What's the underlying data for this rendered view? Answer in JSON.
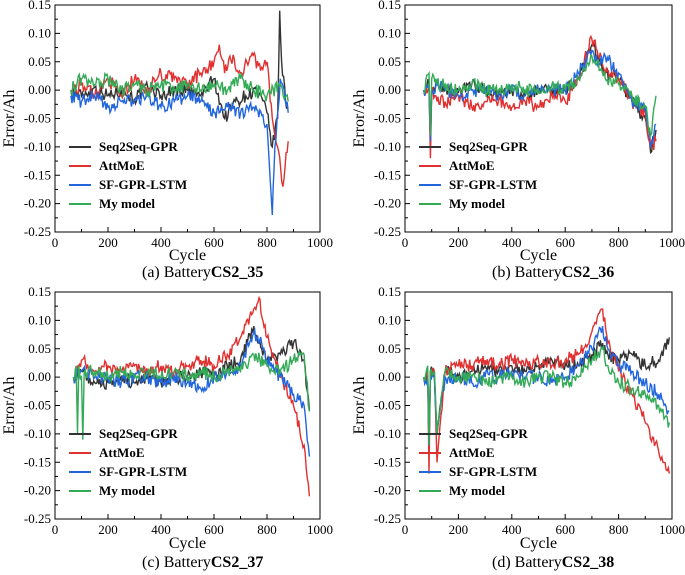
{
  "chart_data": [
    {
      "type": "line",
      "panel": "a",
      "caption_prefix": "(a)  Battery",
      "caption_bold": "CS2_35",
      "xlabel": "Cycle",
      "ylabel": "Error/Ah",
      "xlim": [
        0,
        1000
      ],
      "ylim": [
        -0.25,
        0.15
      ],
      "xticks": [
        "0",
        "200",
        "400",
        "600",
        "800",
        "1000"
      ],
      "yticks": [
        "-0.25",
        "-0.20",
        "-0.15",
        "-0.10",
        "-0.05",
        "0.00",
        "0.05",
        "0.10",
        "0.15"
      ],
      "legend_position": "lower-left",
      "series": [
        {
          "name": "Seq2Seq-GPR",
          "color": "#333333",
          "x": [
            60,
            100,
            150,
            200,
            250,
            300,
            350,
            400,
            450,
            500,
            550,
            600,
            640,
            680,
            720,
            760,
            800,
            820,
            840,
            848,
            855,
            870,
            880
          ],
          "y": [
            0.0,
            -0.01,
            0.005,
            -0.01,
            0.0,
            -0.015,
            0.005,
            -0.01,
            0.0,
            0.0,
            -0.01,
            0.02,
            -0.05,
            -0.02,
            -0.01,
            0.0,
            -0.04,
            -0.1,
            -0.05,
            0.14,
            0.05,
            -0.02,
            -0.03
          ]
        },
        {
          "name": "AttMoE",
          "color": "#e03030",
          "x": [
            60,
            100,
            150,
            200,
            250,
            300,
            350,
            400,
            450,
            500,
            550,
            600,
            620,
            640,
            660,
            700,
            740,
            780,
            800,
            820,
            840,
            860,
            880
          ],
          "y": [
            0.0,
            0.01,
            -0.01,
            0.02,
            -0.01,
            0.02,
            0.0,
            0.03,
            0.02,
            0.01,
            0.03,
            0.05,
            0.08,
            0.03,
            0.06,
            0.03,
            0.06,
            0.04,
            0.05,
            -0.05,
            -0.1,
            -0.17,
            -0.09
          ]
        },
        {
          "name": "SF-GPR-LSTM",
          "color": "#2266dd",
          "x": [
            60,
            100,
            150,
            200,
            250,
            300,
            350,
            400,
            450,
            500,
            550,
            600,
            650,
            700,
            750,
            800,
            820,
            830,
            850,
            880
          ],
          "y": [
            -0.01,
            -0.02,
            -0.01,
            -0.03,
            -0.02,
            -0.02,
            -0.01,
            -0.03,
            -0.02,
            -0.01,
            -0.02,
            -0.04,
            -0.03,
            -0.04,
            -0.03,
            -0.06,
            -0.22,
            -0.1,
            0.02,
            -0.04
          ]
        },
        {
          "name": "My model",
          "color": "#33aa55",
          "x": [
            60,
            100,
            150,
            200,
            250,
            300,
            350,
            400,
            450,
            500,
            550,
            600,
            650,
            700,
            750,
            800,
            850,
            880
          ],
          "y": [
            0.0,
            0.02,
            0.01,
            0.02,
            0.0,
            0.01,
            0.0,
            0.01,
            0.0,
            0.01,
            0.0,
            0.01,
            0.0,
            0.02,
            0.0,
            -0.01,
            0.01,
            -0.02
          ]
        }
      ]
    },
    {
      "type": "line",
      "panel": "b",
      "caption_prefix": "(b)  Battery",
      "caption_bold": "CS2_36",
      "xlabel": "Cycle",
      "ylabel": "Error/Ah",
      "xlim": [
        0,
        1000
      ],
      "ylim": [
        -0.25,
        0.15
      ],
      "xticks": [
        "0",
        "200",
        "400",
        "600",
        "800",
        "1000"
      ],
      "yticks": [
        "-0.25",
        "-0.20",
        "-0.15",
        "-0.10",
        "-0.05",
        "0.00",
        "0.05",
        "0.10",
        "0.15"
      ],
      "legend_position": "lower-left",
      "series": [
        {
          "name": "Seq2Seq-GPR",
          "color": "#333333",
          "x": [
            70,
            90,
            95,
            100,
            120,
            150,
            200,
            250,
            300,
            350,
            400,
            450,
            500,
            550,
            600,
            650,
            700,
            720,
            750,
            800,
            850,
            900,
            920,
            940
          ],
          "y": [
            0.0,
            0.01,
            -0.1,
            0.0,
            0.01,
            0.0,
            -0.005,
            0.01,
            0.0,
            -0.01,
            0.0,
            -0.01,
            0.0,
            0.0,
            0.0,
            0.02,
            0.08,
            0.06,
            0.03,
            0.02,
            -0.02,
            -0.05,
            -0.11,
            -0.07
          ]
        },
        {
          "name": "AttMoE",
          "color": "#e03030",
          "x": [
            70,
            90,
            95,
            100,
            120,
            150,
            200,
            250,
            300,
            350,
            400,
            450,
            500,
            550,
            600,
            650,
            700,
            720,
            750,
            800,
            850,
            900,
            920,
            940
          ],
          "y": [
            0.0,
            0.01,
            -0.12,
            0.0,
            -0.02,
            -0.02,
            -0.01,
            -0.03,
            -0.02,
            -0.02,
            -0.03,
            -0.02,
            -0.03,
            -0.01,
            -0.02,
            0.02,
            0.09,
            0.07,
            0.03,
            0.02,
            -0.02,
            -0.04,
            -0.1,
            -0.09
          ]
        },
        {
          "name": "SF-GPR-LSTM",
          "color": "#2266dd",
          "x": [
            70,
            90,
            95,
            100,
            120,
            150,
            200,
            250,
            300,
            350,
            400,
            450,
            500,
            550,
            600,
            650,
            700,
            720,
            750,
            800,
            850,
            900,
            920,
            940
          ],
          "y": [
            0.0,
            0.01,
            -0.09,
            0.0,
            0.01,
            0.0,
            -0.01,
            0.0,
            0.0,
            -0.01,
            0.0,
            -0.01,
            0.0,
            0.0,
            0.0,
            0.03,
            0.07,
            0.05,
            0.06,
            0.03,
            -0.02,
            -0.03,
            -0.1,
            -0.06
          ]
        },
        {
          "name": "My model",
          "color": "#33aa55",
          "x": [
            70,
            90,
            95,
            100,
            120,
            150,
            200,
            250,
            300,
            350,
            400,
            450,
            500,
            550,
            600,
            650,
            700,
            720,
            750,
            800,
            850,
            900,
            920,
            940
          ],
          "y": [
            0.0,
            0.03,
            -0.08,
            0.02,
            0.01,
            0.01,
            0.0,
            0.01,
            0.0,
            0.0,
            0.01,
            0.0,
            0.0,
            0.01,
            0.0,
            0.02,
            0.06,
            0.05,
            0.02,
            0.01,
            -0.01,
            -0.03,
            -0.08,
            -0.01
          ]
        }
      ]
    },
    {
      "type": "line",
      "panel": "c",
      "caption_prefix": "(c)  Battery",
      "caption_bold": "CS2_37",
      "xlabel": "Cycle",
      "ylabel": "Error/Ah",
      "xlim": [
        0,
        1000
      ],
      "ylim": [
        -0.25,
        0.15
      ],
      "xticks": [
        "0",
        "200",
        "400",
        "600",
        "800",
        "1000"
      ],
      "yticks": [
        "-0.25",
        "-0.20",
        "-0.15",
        "-0.10",
        "-0.05",
        "0.00",
        "0.05",
        "0.10",
        "0.15"
      ],
      "legend_position": "lower-left",
      "series": [
        {
          "name": "Seq2Seq-GPR",
          "color": "#333333",
          "x": [
            70,
            100,
            150,
            200,
            250,
            300,
            350,
            400,
            450,
            500,
            550,
            600,
            650,
            700,
            750,
            780,
            800,
            850,
            900,
            940,
            960
          ],
          "y": [
            0.0,
            0.01,
            -0.01,
            -0.01,
            0.0,
            -0.01,
            0.0,
            -0.01,
            0.0,
            0.0,
            0.01,
            0.0,
            0.02,
            0.03,
            0.09,
            0.05,
            0.03,
            0.04,
            0.06,
            0.03,
            -0.06
          ]
        },
        {
          "name": "AttMoE",
          "color": "#e03030",
          "x": [
            70,
            100,
            150,
            200,
            250,
            300,
            350,
            400,
            450,
            500,
            550,
            600,
            650,
            700,
            750,
            770,
            800,
            850,
            900,
            940,
            960
          ],
          "y": [
            0.0,
            0.03,
            0.01,
            0.02,
            0.01,
            0.02,
            0.01,
            0.02,
            0.01,
            0.02,
            0.03,
            0.02,
            0.04,
            0.07,
            0.12,
            0.14,
            0.07,
            0.0,
            -0.05,
            -0.12,
            -0.21
          ]
        },
        {
          "name": "SF-GPR-LSTM",
          "color": "#2266dd",
          "x": [
            70,
            100,
            150,
            200,
            250,
            300,
            350,
            400,
            450,
            500,
            550,
            600,
            650,
            700,
            750,
            780,
            800,
            850,
            900,
            940,
            960
          ],
          "y": [
            0.0,
            0.01,
            0.0,
            0.0,
            -0.01,
            0.0,
            0.0,
            -0.01,
            0.0,
            -0.01,
            -0.02,
            0.0,
            0.01,
            0.02,
            0.08,
            0.06,
            0.03,
            0.0,
            -0.03,
            -0.05,
            -0.14
          ]
        },
        {
          "name": "My model",
          "color": "#33aa55",
          "x": [
            70,
            80,
            85,
            90,
            100,
            105,
            110,
            150,
            200,
            250,
            300,
            350,
            400,
            450,
            500,
            550,
            600,
            650,
            700,
            750,
            800,
            850,
            900,
            940,
            960
          ],
          "y": [
            0.0,
            0.02,
            -0.1,
            0.02,
            0.0,
            -0.11,
            0.01,
            0.01,
            0.0,
            0.01,
            0.0,
            0.01,
            0.0,
            0.01,
            0.0,
            0.01,
            0.0,
            0.01,
            0.01,
            0.04,
            0.02,
            0.01,
            0.03,
            0.04,
            -0.06
          ]
        }
      ]
    },
    {
      "type": "line",
      "panel": "d",
      "caption_prefix": "(d)  Battery",
      "caption_bold": "CS2_38",
      "xlabel": "Cycle",
      "ylabel": "Error/Ah",
      "xlim": [
        0,
        1000
      ],
      "ylim": [
        -0.25,
        0.15
      ],
      "xticks": [
        "0",
        "200",
        "400",
        "600",
        "800",
        "1000"
      ],
      "yticks": [
        "-0.25",
        "-0.20",
        "-0.15",
        "-0.10",
        "-0.05",
        "0.00",
        "0.05",
        "0.10",
        "0.15"
      ],
      "legend_position": "lower-left",
      "series": [
        {
          "name": "Seq2Seq-GPR",
          "color": "#333333",
          "x": [
            70,
            85,
            90,
            95,
            110,
            120,
            150,
            200,
            250,
            300,
            350,
            400,
            450,
            500,
            550,
            600,
            650,
            700,
            740,
            760,
            800,
            850,
            900,
            950,
            990
          ],
          "y": [
            0.0,
            0.01,
            -0.13,
            0.01,
            0.0,
            -0.1,
            0.01,
            0.0,
            0.01,
            0.02,
            0.01,
            0.02,
            0.01,
            0.02,
            0.03,
            0.02,
            0.02,
            0.04,
            0.06,
            0.04,
            0.03,
            0.04,
            0.02,
            0.03,
            0.07
          ]
        },
        {
          "name": "AttMoE",
          "color": "#e03030",
          "x": [
            70,
            85,
            90,
            95,
            110,
            120,
            150,
            200,
            250,
            300,
            350,
            400,
            450,
            500,
            550,
            600,
            650,
            700,
            740,
            760,
            800,
            850,
            900,
            950,
            990
          ],
          "y": [
            0.0,
            0.01,
            -0.17,
            0.01,
            0.01,
            -0.15,
            0.01,
            0.02,
            0.02,
            0.03,
            0.02,
            0.03,
            0.02,
            0.03,
            0.02,
            0.03,
            0.04,
            0.08,
            0.12,
            0.06,
            0.01,
            -0.03,
            -0.08,
            -0.13,
            -0.17
          ]
        },
        {
          "name": "SF-GPR-LSTM",
          "color": "#2266dd",
          "x": [
            70,
            85,
            90,
            95,
            110,
            120,
            150,
            200,
            250,
            300,
            350,
            400,
            450,
            500,
            550,
            600,
            650,
            700,
            740,
            760,
            800,
            850,
            900,
            950,
            990
          ],
          "y": [
            0.0,
            0.0,
            -0.12,
            0.0,
            0.0,
            -0.1,
            0.0,
            0.0,
            -0.01,
            0.0,
            0.0,
            0.01,
            0.0,
            0.0,
            -0.01,
            0.0,
            0.02,
            0.05,
            0.09,
            0.05,
            0.02,
            0.01,
            -0.01,
            -0.03,
            -0.06
          ]
        },
        {
          "name": "My model",
          "color": "#33aa55",
          "x": [
            70,
            85,
            90,
            95,
            110,
            120,
            150,
            200,
            250,
            300,
            350,
            400,
            450,
            500,
            550,
            600,
            650,
            700,
            740,
            760,
            800,
            850,
            900,
            950,
            990
          ],
          "y": [
            0.0,
            0.02,
            -0.12,
            0.01,
            0.01,
            -0.1,
            0.01,
            0.0,
            0.0,
            -0.01,
            0.0,
            0.0,
            -0.01,
            0.0,
            0.0,
            -0.01,
            0.0,
            0.03,
            0.05,
            0.02,
            -0.01,
            -0.02,
            -0.03,
            -0.05,
            -0.08
          ]
        }
      ]
    }
  ]
}
